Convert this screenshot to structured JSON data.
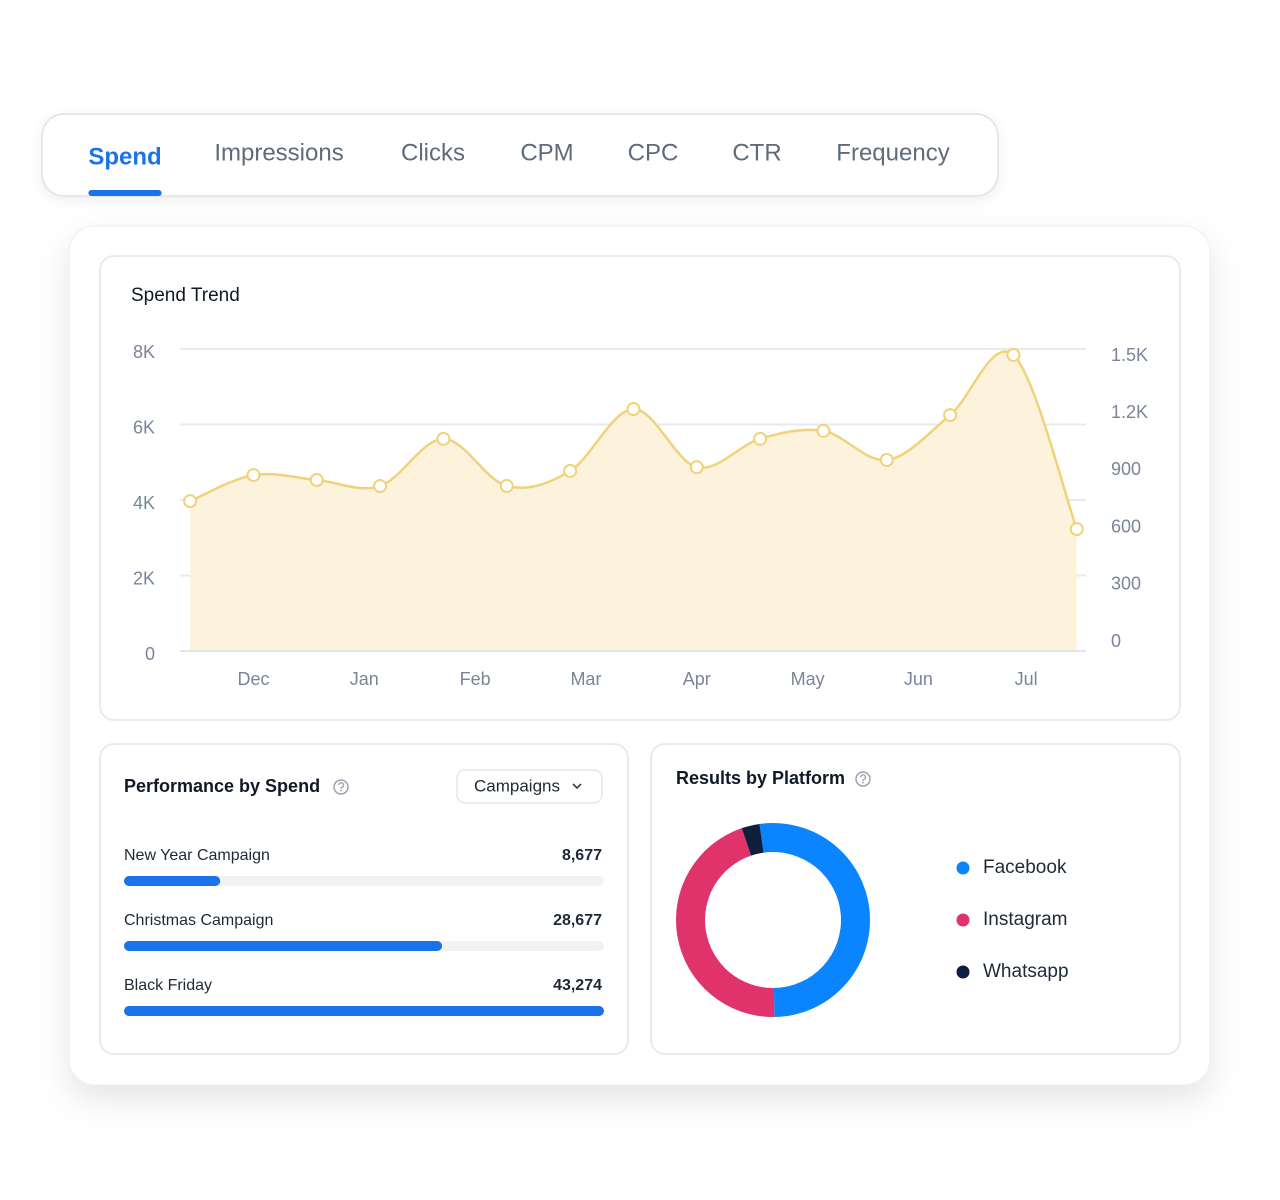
{
  "tabs": [
    "Spend",
    "Impressions",
    "Clicks",
    "CPM",
    "CPC",
    "CTR",
    "Frequency"
  ],
  "active_tab": 0,
  "chart_data": [
    {
      "type": "line",
      "title": "Spend Trend",
      "x": [
        0,
        1,
        2,
        3,
        4,
        5,
        6,
        7,
        8,
        9,
        10,
        11,
        12,
        13,
        14
      ],
      "values": [
        3970,
        4660,
        4530,
        4370,
        5620,
        4370,
        4770,
        6410,
        4870,
        5620,
        5830,
        5060,
        6250,
        7840,
        3230
      ],
      "color": "#f0d27a",
      "xlim": [
        -0.16,
        14.13
      ],
      "xticks": [
        {
          "value": 1,
          "label": "Dec"
        },
        {
          "value": 2.75,
          "label": "Jan"
        },
        {
          "value": 4.5,
          "label": "Feb"
        },
        {
          "value": 6.25,
          "label": "Mar"
        },
        {
          "value": 8,
          "label": "Apr"
        },
        {
          "value": 9.75,
          "label": "May"
        },
        {
          "value": 11.5,
          "label": "Jun"
        },
        {
          "value": 13.2,
          "label": "Jul"
        }
      ],
      "ylim": [
        0,
        8000
      ],
      "yticks": [
        0,
        {
          "value": 2000,
          "label": "2K"
        },
        {
          "value": 4000,
          "label": "4K"
        },
        {
          "value": 6000,
          "label": "6K"
        },
        {
          "value": 8000,
          "label": "8K"
        }
      ],
      "y2lim": [
        0,
        1500
      ],
      "y2ticks": [
        0,
        300,
        600,
        900,
        {
          "value": 1200,
          "label": "1.2K"
        },
        {
          "value": 1500,
          "label": "1.5K"
        }
      ],
      "grid": true
    },
    {
      "type": "hbar",
      "title": "Performance by Spend",
      "dropdown": "Campaigns",
      "categories": [
        "New Year Campaign",
        "Christmas Campaign",
        "Black Friday"
      ],
      "values": [
        8677,
        28677,
        43274
      ],
      "value_labels": [
        "8,677",
        "28,677",
        "43,274"
      ],
      "color": "#1a73e8"
    },
    {
      "type": "donut",
      "title": "Results by Platform",
      "categories": [
        "Facebook",
        "Instagram",
        "Whatsapp"
      ],
      "values": [
        52,
        45,
        3
      ],
      "colors": [
        "#0a84ff",
        "#e0336b",
        "#0d1f3c"
      ]
    }
  ]
}
